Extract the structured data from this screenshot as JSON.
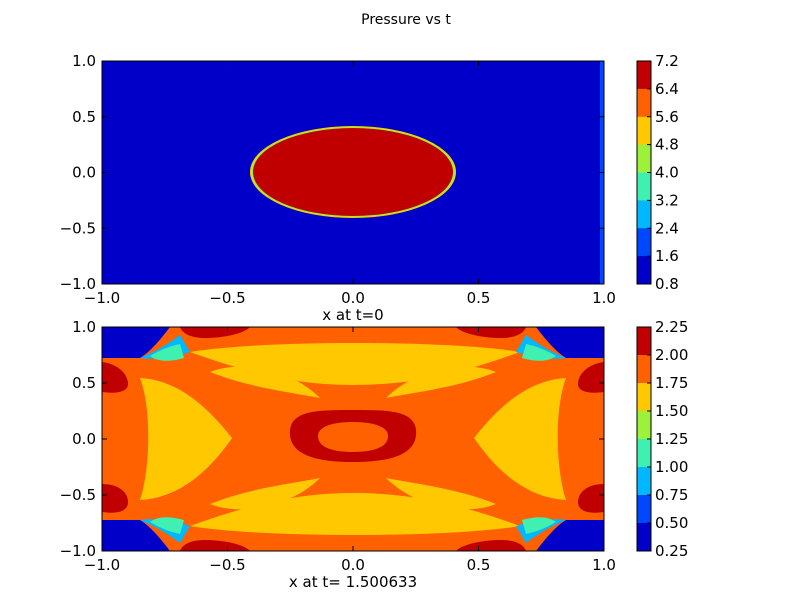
{
  "title": "Pressure vs t",
  "chart_data": [
    {
      "type": "heatmap",
      "subplot": "top",
      "xlabel": "x at t=0",
      "ylabel": "",
      "xlim": [
        -1.0,
        1.0
      ],
      "ylim": [
        -1.0,
        1.0
      ],
      "x_ticks": [
        "−1.0",
        "−0.5",
        "0.0",
        "0.5",
        "1.0"
      ],
      "y_ticks": [
        "1.0",
        "0.5",
        "0.0",
        "−0.5",
        "−1.0"
      ],
      "colorbar_levels": [
        "7.2",
        "6.4",
        "5.6",
        "4.8",
        "4.0",
        "3.2",
        "2.4",
        "1.6",
        "0.8"
      ],
      "colorbar_colors": [
        "#c00000",
        "#ff6000",
        "#ffc800",
        "#9cf23a",
        "#40f0b0",
        "#00b8ff",
        "#0048ff",
        "#0000c8"
      ],
      "description_values": {
        "background_value": 0.8,
        "ellipse_value": 7.2,
        "ellipse_center": [
          0.0,
          0.0
        ],
        "ellipse_semi_axes": [
          0.4,
          0.4
        ]
      }
    },
    {
      "type": "heatmap",
      "subplot": "bottom",
      "xlabel": "x at t= 1.500633",
      "ylabel": "",
      "xlim": [
        -1.0,
        1.0
      ],
      "ylim": [
        -1.0,
        1.0
      ],
      "x_ticks": [
        "−1.0",
        "−0.5",
        "0.0",
        "0.5",
        "1.0"
      ],
      "y_ticks": [
        "1.0",
        "0.5",
        "0.0",
        "−0.5",
        "−1.0"
      ],
      "colorbar_levels": [
        "2.25",
        "2.00",
        "1.75",
        "1.50",
        "1.25",
        "1.00",
        "0.75",
        "0.50",
        "0.25"
      ],
      "colorbar_colors": [
        "#c00000",
        "#ff6000",
        "#ffc800",
        "#9cf23a",
        "#40f0b0",
        "#00b8ff",
        "#0048ff",
        "#0000c8"
      ]
    }
  ]
}
